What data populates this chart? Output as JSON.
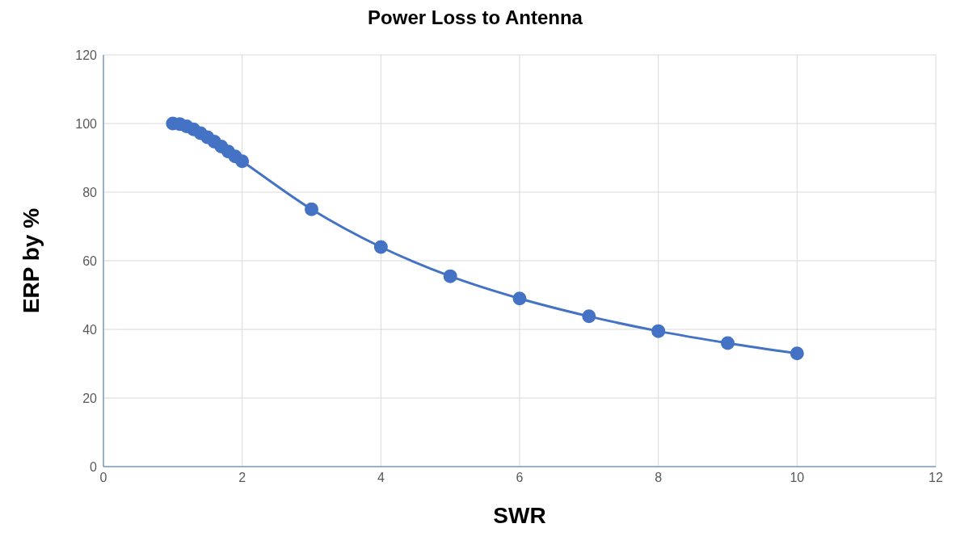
{
  "chart_data": {
    "type": "line",
    "title": "Power Loss to Antenna",
    "xlabel": "SWR",
    "ylabel": "ERP  by %",
    "series": [
      {
        "color": "#4472c4",
        "x": [
          1,
          1.1,
          1.2,
          1.3,
          1.4,
          1.5,
          1.6,
          1.7,
          1.8,
          1.9,
          2,
          3,
          4,
          5,
          6,
          7,
          8,
          9,
          10
        ],
        "values": [
          100,
          99.8,
          99.2,
          98.3,
          97.2,
          96,
          94.7,
          93.3,
          91.8,
          90.4,
          89,
          75,
          64,
          55.5,
          49,
          43.8,
          39.5,
          36,
          33
        ]
      }
    ],
    "xlim": [
      0,
      12
    ],
    "xticks": [
      0,
      2,
      4,
      6,
      8,
      10,
      12
    ],
    "ylim": [
      0,
      120
    ],
    "yticks": [
      0,
      20,
      40,
      60,
      80,
      100,
      120
    ],
    "grid": true,
    "marker": "circle",
    "line_style": "solid"
  }
}
